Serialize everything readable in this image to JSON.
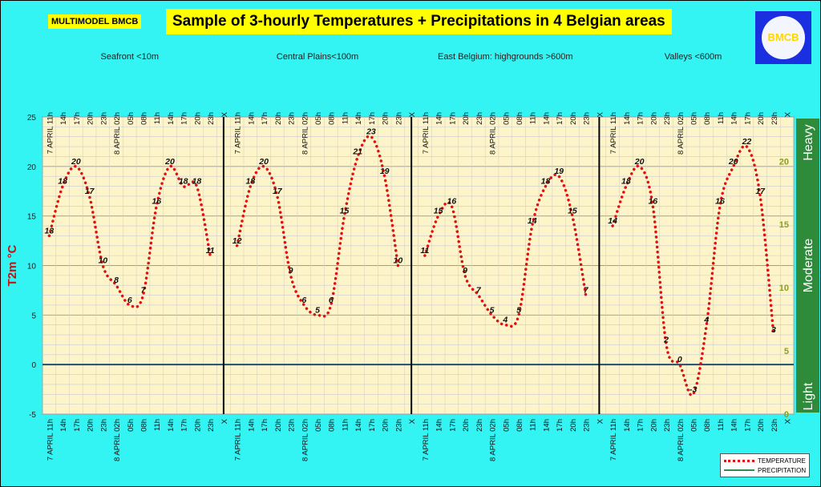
{
  "header": {
    "brand": "MULTIMODEL BMCB",
    "title": "Sample of 3-hourly Temperatures + Precipitations in 4 Belgian areas",
    "logo_text": "BMCB"
  },
  "colors": {
    "background": "#33f3f3",
    "plot_background": "#fdf5c9",
    "temperature": "#e01010",
    "precipitation": "#2e8b57",
    "zero_line": "#1f4e79",
    "title_highlight": "#ffff00",
    "precip_axis_bg": "#2e8b3a"
  },
  "chart_data": {
    "type": "line",
    "ylabel": "T2m °C",
    "ylim": [
      -5,
      25
    ],
    "yticks": [
      -5,
      0,
      5,
      10,
      15,
      20,
      25
    ],
    "precip_axis": {
      "ticks": [
        0,
        5,
        10,
        15,
        20
      ],
      "categories": [
        "Light",
        "Moderate",
        "Heavy"
      ]
    },
    "grid": true,
    "legend_position": "bottom-right",
    "x_labels": [
      "7 APRIL 11h",
      "14h",
      "17h",
      "20h",
      "23h",
      "8 APRIL 02h",
      "05h",
      "08h",
      "11h",
      "14h",
      "17h",
      "20h",
      "23h",
      "X"
    ],
    "regions": [
      {
        "name": "Seafront <10m",
        "values": [
          13,
          18,
          20,
          17,
          10,
          8,
          6,
          7,
          16,
          20,
          18,
          18,
          11
        ]
      },
      {
        "name": "Central Plains<100m",
        "values": [
          12,
          18,
          20,
          17,
          9,
          6,
          5,
          6,
          15,
          21,
          23,
          19,
          10
        ]
      },
      {
        "name": "East Belgium:     highgrounds >600m",
        "values": [
          11,
          15,
          16,
          9,
          7,
          5,
          4,
          5,
          14,
          18,
          19,
          15,
          7
        ]
      },
      {
        "name": "Valleys <600m",
        "values": [
          14,
          18,
          20,
          16,
          2,
          0,
          -3,
          4,
          16,
          20,
          22,
          17,
          3
        ]
      }
    ],
    "series": [
      {
        "name": "TEMPERATURE"
      },
      {
        "name": "PRECIPITATION"
      }
    ]
  }
}
